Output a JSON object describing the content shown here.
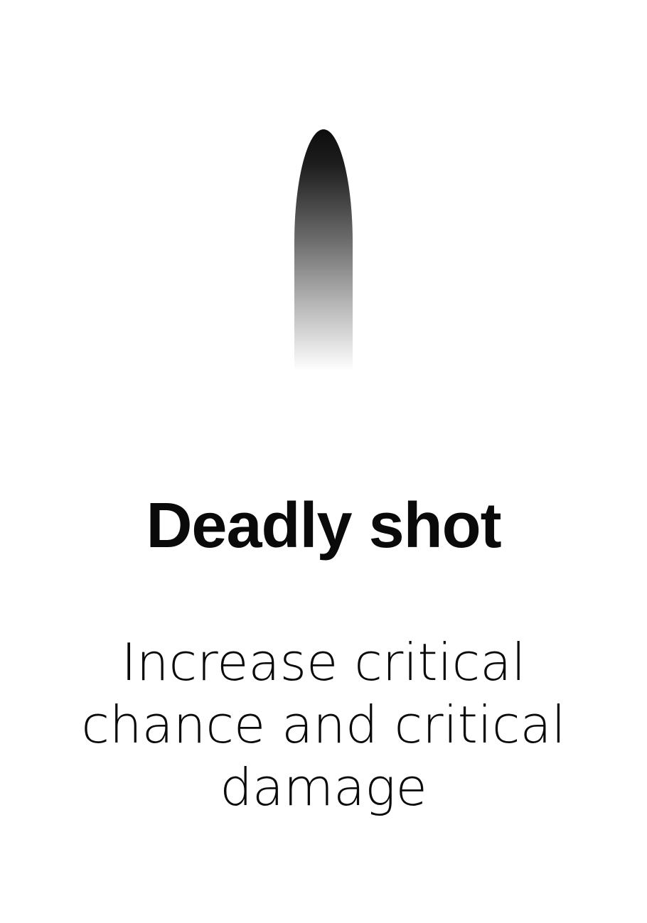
{
  "card": {
    "icon": "bullet-icon",
    "title": "Deadly shot",
    "description": "Increase critical chance and critical damage"
  },
  "colors": {
    "background": "#ffffff",
    "text": "#0a0a0a",
    "icon_top": "#111111",
    "icon_bottom": "#ffffff"
  }
}
